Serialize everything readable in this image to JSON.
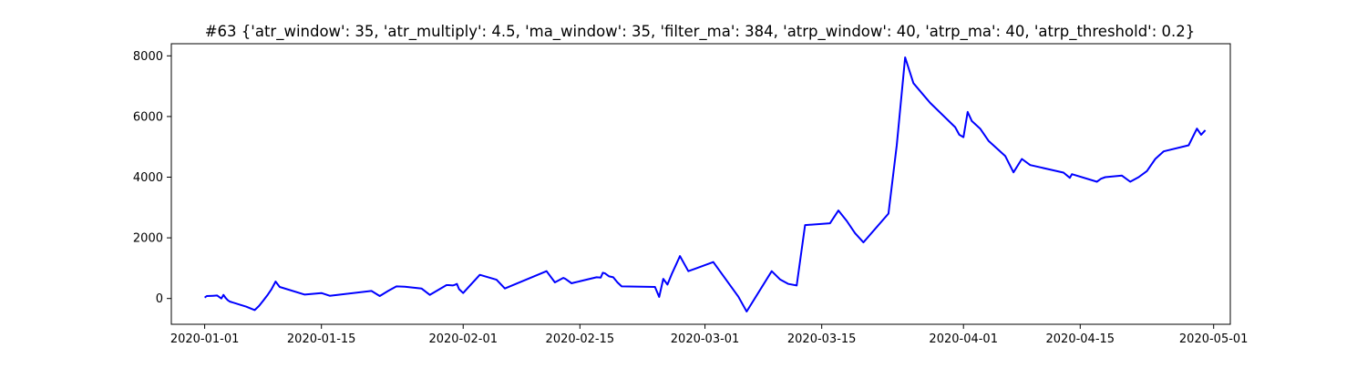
{
  "chart_data": {
    "type": "line",
    "title": "#63 {'atr_window': 35, 'atr_multiply': 4.5, 'ma_window': 35, 'filter_ma': 384, 'atrp_window': 40, 'atrp_ma': 40, 'atrp_threshold': 0.2}",
    "xlabel": "",
    "ylabel": "",
    "xlim": [
      "2019-12-28",
      "2020-05-03"
    ],
    "ylim": [
      -850,
      8400
    ],
    "x_ticks": [
      "2020-01-01",
      "2020-01-15",
      "2020-02-01",
      "2020-02-15",
      "2020-03-01",
      "2020-03-15",
      "2020-04-01",
      "2020-04-15",
      "2020-05-01"
    ],
    "y_ticks": [
      0,
      2000,
      4000,
      6000,
      8000
    ],
    "grid": false,
    "legend": "none",
    "line_color": "#0000ff",
    "series": [
      {
        "x": [
          "2020-01-01",
          "2020-01-01T06:00",
          "2020-01-02",
          "2020-01-02T12:00",
          "2020-01-03",
          "2020-01-03T06:00",
          "2020-01-03T12:00",
          "2020-01-03T18:00",
          "2020-01-04",
          "2020-01-06",
          "2020-01-07",
          "2020-01-07T12:00",
          "2020-01-08",
          "2020-01-08T12:00",
          "2020-01-09",
          "2020-01-09T12:00",
          "2020-01-10",
          "2020-01-13",
          "2020-01-15",
          "2020-01-16",
          "2020-01-21",
          "2020-01-22",
          "2020-01-23",
          "2020-01-24",
          "2020-01-25",
          "2020-01-27",
          "2020-01-28",
          "2020-01-30",
          "2020-01-30T06:00",
          "2020-01-30T18:00",
          "2020-01-31",
          "2020-01-31T06:00",
          "2020-01-31T12:00",
          "2020-02-01",
          "2020-02-03",
          "2020-02-05",
          "2020-02-06",
          "2020-02-11",
          "2020-02-12",
          "2020-02-13",
          "2020-02-13T06:00",
          "2020-02-14",
          "2020-02-14T06:00",
          "2020-02-17",
          "2020-02-17T12:00",
          "2020-02-17T18:00",
          "2020-02-18",
          "2020-02-18T12:00",
          "2020-02-19",
          "2020-02-19T12:00",
          "2020-02-20",
          "2020-02-24",
          "2020-02-24T12:00",
          "2020-02-25",
          "2020-02-25T12:00",
          "2020-02-26",
          "2020-02-26T12:00",
          "2020-02-27",
          "2020-02-28",
          "2020-03-02",
          "2020-03-05",
          "2020-03-06",
          "2020-03-09",
          "2020-03-10",
          "2020-03-11",
          "2020-03-12",
          "2020-03-13",
          "2020-03-16",
          "2020-03-17",
          "2020-03-18",
          "2020-03-19",
          "2020-03-20",
          "2020-03-23",
          "2020-03-24",
          "2020-03-25",
          "2020-03-26",
          "2020-03-28",
          "2020-03-31",
          "2020-03-31T12:00",
          "2020-04-01",
          "2020-04-01T12:00",
          "2020-04-02",
          "2020-04-03",
          "2020-04-04",
          "2020-04-06",
          "2020-04-07",
          "2020-04-08",
          "2020-04-09",
          "2020-04-13",
          "2020-04-13T18:00",
          "2020-04-14",
          "2020-04-17",
          "2020-04-17T12:00",
          "2020-04-18",
          "2020-04-20",
          "2020-04-21",
          "2020-04-22",
          "2020-04-23",
          "2020-04-24",
          "2020-04-25",
          "2020-04-28",
          "2020-04-29",
          "2020-04-29T12:00",
          "2020-04-30"
        ],
        "y": [
          30,
          80,
          90,
          100,
          0,
          120,
          20,
          -50,
          -100,
          -270,
          -380,
          -250,
          -80,
          100,
          300,
          560,
          380,
          130,
          180,
          90,
          250,
          80,
          250,
          400,
          390,
          330,
          120,
          440,
          440,
          430,
          450,
          480,
          310,
          180,
          780,
          620,
          330,
          900,
          530,
          680,
          650,
          500,
          520,
          700,
          690,
          850,
          830,
          730,
          700,
          530,
          400,
          380,
          50,
          650,
          460,
          800,
          1100,
          1400,
          900,
          1200,
          60,
          -430,
          900,
          630,
          480,
          430,
          2420,
          2480,
          2900,
          2560,
          2150,
          1850,
          2800,
          5050,
          7950,
          7100,
          6450,
          5650,
          5400,
          5320,
          6150,
          5850,
          5600,
          5200,
          4700,
          4160,
          4600,
          4400,
          4150,
          3980,
          4100,
          3850,
          3950,
          4000,
          4050,
          3850,
          4000,
          4200,
          4600,
          4850,
          5050,
          5600,
          5400,
          5550
        ]
      }
    ]
  }
}
